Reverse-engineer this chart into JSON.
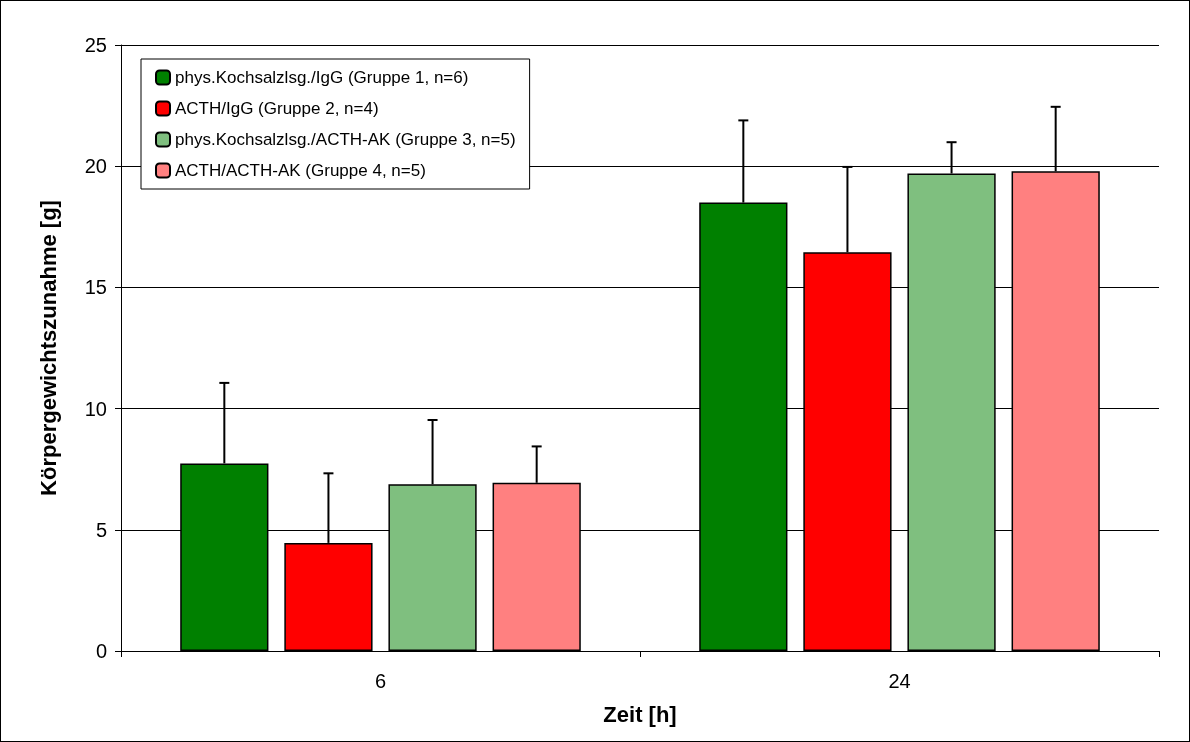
{
  "chart_data": {
    "type": "bar",
    "xlabel": "Zeit [h]",
    "ylabel": "Körpergewichtszunahme [g]",
    "categories": [
      "6",
      "24"
    ],
    "series": [
      {
        "name": "phys.Kochsalzlsg./IgG (Gruppe 1, n=6)",
        "color": "#008000",
        "values": [
          7.74,
          18.5
        ],
        "errors": [
          [
            7.74,
            11.06
          ],
          [
            18.5,
            21.89
          ]
        ]
      },
      {
        "name": "ACTH/IgG (Gruppe 2, n=4)",
        "color": "#ff0000",
        "values": [
          4.46,
          16.45
        ],
        "errors": [
          [
            4.46,
            7.33
          ],
          [
            16.45,
            19.97
          ]
        ]
      },
      {
        "name": "phys.Kochsalzlsg./ACTH-AK (Gruppe 3, n=5)",
        "color": "#7fbf7f",
        "values": [
          6.88,
          19.7
        ],
        "errors": [
          [
            6.88,
            9.53
          ],
          [
            19.7,
            20.99
          ]
        ]
      },
      {
        "name": "ACTH/ACTH-AK (Gruppe 4, n=5)",
        "color": "#ff8080",
        "values": [
          6.94,
          19.79
        ],
        "errors": [
          [
            6.94,
            8.44
          ],
          [
            19.79,
            22.45
          ]
        ]
      }
    ],
    "ylim": [
      0,
      25
    ],
    "yticks": [
      0,
      5,
      10,
      15,
      20,
      25
    ],
    "grid": "y",
    "legend": "top left"
  }
}
